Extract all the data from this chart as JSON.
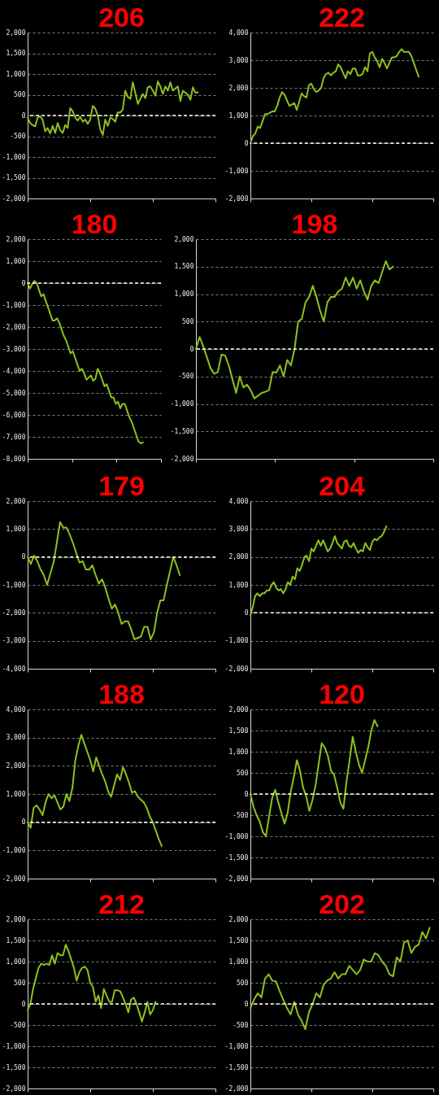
{
  "chart_data": [
    {
      "type": "line",
      "title": "206",
      "color": "#8cc21e",
      "grid": "y",
      "tick_labels": "y",
      "ylim": [
        -2000,
        2000
      ],
      "yticks": [
        {
          "value": -2000,
          "label": "-2,000"
        },
        {
          "value": -1500,
          "label": "-1,500"
        },
        {
          "value": -1000,
          "label": "-1,000"
        },
        -500,
        0,
        500,
        {
          "value": 1000,
          "label": "1,000"
        },
        {
          "value": 1500,
          "label": "1,500"
        },
        {
          "value": 2000,
          "label": "2,000"
        }
      ],
      "ref_lines": [
        {
          "axis": "y",
          "value": 0,
          "color": "#ffffff",
          "line_style": "dashed"
        }
      ],
      "categories": [
        null,
        null,
        null,
        null,
        null,
        null,
        null,
        null,
        null,
        null,
        null,
        null,
        null,
        null,
        null,
        null,
        null,
        null,
        null,
        null,
        null,
        null,
        null,
        null,
        null,
        null,
        null,
        null,
        null,
        null,
        null,
        null,
        null,
        null,
        null,
        null,
        null,
        null,
        null,
        null,
        null,
        null,
        null,
        null,
        null,
        null,
        null,
        null,
        null,
        null,
        null,
        null,
        null,
        null,
        null,
        null,
        null,
        null,
        null,
        null,
        null,
        null,
        null,
        null,
        null,
        null,
        null,
        null,
        null,
        null,
        null,
        null,
        null,
        null,
        null,
        null
      ],
      "values": [
        -50,
        -180,
        -230,
        -260,
        -50,
        -20,
        -100,
        -380,
        -300,
        -430,
        -250,
        -420,
        -180,
        -350,
        -420,
        -230,
        -300,
        180,
        100,
        -50,
        -120,
        -30,
        -150,
        -100,
        -200,
        -100,
        230,
        170,
        0,
        -330,
        -470,
        -100,
        -250,
        -50,
        -80,
        -150,
        80,
        70,
        150,
        600,
        450,
        400,
        800,
        550,
        280,
        400,
        520,
        420,
        680,
        700,
        600,
        480,
        820,
        700,
        520,
        700,
        600,
        800,
        600,
        650,
        700,
        350,
        600,
        550,
        500,
        380,
        680,
        550,
        560,
        null,
        null,
        null,
        null,
        null,
        null,
        null
      ]
    },
    {
      "type": "line",
      "title": "222",
      "color": "#8cc21e",
      "grid": "y",
      "tick_labels": "y",
      "ylim": [
        -2000,
        4000
      ],
      "yticks": [
        {
          "value": -2000,
          "label": "-2,000"
        },
        {
          "value": -1000,
          "label": "-1,000"
        },
        0,
        {
          "value": 1000,
          "label": "1,000"
        },
        {
          "value": 2000,
          "label": "2,000"
        },
        {
          "value": 3000,
          "label": "3,000"
        },
        {
          "value": 4000,
          "label": "4,000"
        }
      ],
      "ref_lines": [
        {
          "axis": "y",
          "value": 0,
          "color": "#ffffff",
          "line_style": "dashed"
        }
      ],
      "categories": [
        null,
        null,
        null,
        null,
        null,
        null,
        null,
        null,
        null,
        null,
        null,
        null,
        null,
        null,
        null,
        null,
        null,
        null,
        null,
        null,
        null,
        null,
        null,
        null,
        null,
        null,
        null,
        null,
        null,
        null,
        null,
        null,
        null,
        null,
        null,
        null,
        null,
        null,
        null,
        null,
        null,
        null,
        null,
        null,
        null,
        null,
        null,
        null,
        null,
        null,
        null,
        null,
        null,
        null,
        null,
        null,
        null,
        null,
        null,
        null,
        null,
        null,
        null,
        null,
        null,
        null,
        null,
        null,
        null,
        null,
        null,
        null,
        null,
        null,
        null,
        null
      ],
      "values": [
        0,
        250,
        350,
        600,
        550,
        800,
        1050,
        1050,
        1100,
        1150,
        1150,
        1350,
        1650,
        1850,
        1750,
        1550,
        1350,
        1400,
        1450,
        1200,
        1500,
        1800,
        1700,
        1650,
        2100,
        2150,
        1950,
        1850,
        1900,
        2000,
        2350,
        2500,
        2550,
        2450,
        2550,
        2600,
        2850,
        2750,
        2550,
        2350,
        2600,
        2500,
        2700,
        2700,
        2450,
        2450,
        2500,
        2750,
        2600,
        3250,
        3300,
        3100,
        2950,
        2750,
        3050,
        2900,
        2700,
        2900,
        3100,
        3100,
        3150,
        3300,
        3400,
        3300,
        3300,
        3300,
        3150,
        2900,
        2650,
        2400,
        null,
        null,
        null,
        null,
        null,
        null
      ]
    },
    {
      "type": "line",
      "title": "180",
      "color": "#8cc21e",
      "grid": "y",
      "tick_labels": "y",
      "ylim": [
        -8000,
        2000
      ],
      "yticks": [
        {
          "value": -8000,
          "label": "-8,000"
        },
        {
          "value": -7000,
          "label": "-7,000"
        },
        {
          "value": -6000,
          "label": "-6,000"
        },
        {
          "value": -5000,
          "label": "-5,000"
        },
        {
          "value": -4000,
          "label": "-4,000"
        },
        {
          "value": -3000,
          "label": "-3,000"
        },
        {
          "value": -2000,
          "label": "-2,000"
        },
        {
          "value": -1000,
          "label": "-1,000"
        },
        0,
        {
          "value": 1000,
          "label": "1,000"
        },
        {
          "value": 2000,
          "label": "2,000"
        }
      ],
      "ref_lines": [
        {
          "axis": "y",
          "value": 0,
          "color": "#ffffff",
          "line_style": "dashed"
        }
      ],
      "categories": [
        null,
        null,
        null,
        null,
        null,
        null,
        null,
        null,
        null,
        null,
        null,
        null,
        null,
        null,
        null,
        null,
        null,
        null,
        null,
        null,
        null,
        null,
        null,
        null,
        null,
        null,
        null,
        null,
        null,
        null,
        null,
        null,
        null,
        null,
        null,
        null,
        null,
        null,
        null,
        null,
        null,
        null,
        null,
        null,
        null,
        null,
        null,
        null,
        null,
        null,
        null,
        null,
        null,
        null,
        null,
        null,
        null,
        null,
        null,
        null
      ],
      "values": [
        0,
        -250,
        -50,
        100,
        0,
        -300,
        -600,
        -500,
        -800,
        -1100,
        -1400,
        -1700,
        -1700,
        -1600,
        -1800,
        -2100,
        -2400,
        -2600,
        -2900,
        -3200,
        -3100,
        -3400,
        -3700,
        -4000,
        -3900,
        -4100,
        -4400,
        -4300,
        -4200,
        -4450,
        -4350,
        -3900,
        -4100,
        -4400,
        -4700,
        -4600,
        -4900,
        -5200,
        -5200,
        -5500,
        -5400,
        -5700,
        -5500,
        -5500,
        -5800,
        -6100,
        -6300,
        -6600,
        -6900,
        -7200,
        -7300,
        -7250,
        null,
        null,
        null,
        null,
        null,
        null,
        null,
        null
      ]
    },
    {
      "type": "line",
      "title": "198",
      "color": "#8cc21e",
      "grid": "y",
      "tick_labels": "y",
      "ylim": [
        -2000,
        2000
      ],
      "yticks": [
        {
          "value": -2000,
          "label": "-2,000"
        },
        {
          "value": -1500,
          "label": "-1,500"
        },
        {
          "value": -1000,
          "label": "-1,000"
        },
        -500,
        0,
        500,
        {
          "value": 1000,
          "label": "1,000"
        },
        {
          "value": 1500,
          "label": "1,500"
        },
        {
          "value": 2000,
          "label": "2,000"
        }
      ],
      "ref_lines": [
        {
          "axis": "y",
          "value": 0,
          "color": "#ffffff",
          "line_style": "dashed"
        }
      ],
      "categories": [
        null,
        null,
        null,
        null,
        null,
        null,
        null,
        null,
        null,
        null,
        null,
        null,
        null,
        null,
        null,
        null,
        null,
        null,
        null,
        null,
        null,
        null,
        null,
        null,
        null,
        null,
        null,
        null,
        null,
        null,
        null,
        null,
        null,
        null,
        null,
        null,
        null,
        null,
        null,
        null,
        null,
        null,
        null,
        null,
        null,
        null,
        null,
        null,
        null,
        null,
        null,
        null,
        null,
        null,
        null,
        null,
        null,
        null,
        null,
        null,
        null,
        null,
        null,
        null,
        null,
        null
      ],
      "values": [
        0,
        220,
        50,
        -150,
        -350,
        -450,
        -420,
        -100,
        -120,
        -300,
        -550,
        -800,
        -500,
        -700,
        -650,
        -750,
        -900,
        -850,
        -800,
        -780,
        -750,
        -420,
        -430,
        -300,
        -500,
        -200,
        -300,
        0,
        500,
        550,
        850,
        950,
        1150,
        950,
        700,
        500,
        850,
        950,
        950,
        1050,
        1100,
        1300,
        1150,
        1300,
        1100,
        1250,
        1050,
        900,
        1150,
        1250,
        1200,
        1400,
        1600,
        1450,
        1500,
        null,
        null,
        null,
        null,
        null,
        null,
        null,
        null,
        null,
        null,
        null
      ]
    },
    {
      "type": "line",
      "title": "179",
      "color": "#8cc21e",
      "grid": "y",
      "tick_labels": "y",
      "ylim": [
        -4000,
        2000
      ],
      "yticks": [
        {
          "value": -4000,
          "label": "-4,000"
        },
        {
          "value": -3000,
          "label": "-3,000"
        },
        {
          "value": -2000,
          "label": "-2,000"
        },
        {
          "value": -1000,
          "label": "-1,000"
        },
        0,
        {
          "value": 1000,
          "label": "1,000"
        },
        {
          "value": 2000,
          "label": "2,000"
        }
      ],
      "ref_lines": [
        {
          "axis": "y",
          "value": 0,
          "color": "#ffffff",
          "line_style": "dashed"
        }
      ],
      "categories": [
        null,
        null,
        null,
        null,
        null,
        null,
        null,
        null,
        null,
        null,
        null,
        null,
        null,
        null,
        null,
        null,
        null,
        null,
        null,
        null,
        null,
        null,
        null,
        null,
        null,
        null,
        null,
        null,
        null,
        null,
        null,
        null,
        null,
        null,
        null,
        null,
        null,
        null,
        null,
        null,
        null,
        null,
        null,
        null,
        null,
        null,
        null,
        null,
        null,
        null,
        null,
        null,
        null,
        null,
        null,
        null,
        null,
        null,
        null
      ],
      "values": [
        0,
        -250,
        50,
        -150,
        -450,
        -650,
        -1000,
        -600,
        -200,
        500,
        1250,
        1050,
        1050,
        800,
        500,
        150,
        -200,
        -150,
        -450,
        -450,
        -300,
        -650,
        -950,
        -800,
        -1100,
        -1500,
        -1850,
        -1700,
        -2000,
        -2400,
        -2300,
        -2300,
        -2600,
        -2950,
        -2900,
        -2850,
        -2500,
        -2500,
        -2950,
        -2700,
        -2000,
        -1550,
        -1550,
        -1000,
        -500,
        0,
        -300,
        -650,
        null,
        null,
        null,
        null,
        null,
        null,
        null,
        null,
        null,
        null,
        null
      ]
    },
    {
      "type": "line",
      "title": "204",
      "color": "#8cc21e",
      "grid": "y",
      "tick_labels": "y",
      "ylim": [
        -2000,
        4000
      ],
      "yticks": [
        {
          "value": -2000,
          "label": "-2,000"
        },
        {
          "value": -1000,
          "label": "-1,000"
        },
        0,
        {
          "value": 1000,
          "label": "1,000"
        },
        {
          "value": 2000,
          "label": "2,000"
        },
        {
          "value": 3000,
          "label": "3,000"
        },
        {
          "value": 4000,
          "label": "4,000"
        }
      ],
      "ref_lines": [
        {
          "axis": "y",
          "value": 0,
          "color": "#ffffff",
          "line_style": "dashed"
        }
      ],
      "categories": [
        null,
        null,
        null,
        null,
        null,
        null,
        null,
        null,
        null,
        null,
        null,
        null,
        null,
        null,
        null,
        null,
        null,
        null,
        null,
        null,
        null,
        null,
        null,
        null,
        null,
        null,
        null,
        null,
        null,
        null,
        null,
        null,
        null,
        null,
        null,
        null,
        null,
        null,
        null,
        null,
        null,
        null,
        null,
        null,
        null,
        null,
        null,
        null,
        null,
        null,
        null,
        null,
        null,
        null,
        null,
        null,
        null,
        null,
        null,
        null,
        null,
        null,
        null,
        null,
        null,
        null,
        null,
        null,
        null,
        null,
        null,
        null,
        null,
        null,
        null,
        null,
        null,
        null,
        null
      ],
      "values": [
        -100,
        200,
        600,
        700,
        600,
        700,
        700,
        800,
        800,
        1000,
        1100,
        900,
        800,
        850,
        700,
        850,
        1100,
        1000,
        1300,
        1200,
        1600,
        1500,
        1700,
        2000,
        2050,
        1850,
        2300,
        2200,
        2400,
        2600,
        2400,
        2600,
        2400,
        2200,
        2300,
        2500,
        2750,
        2500,
        2400,
        2300,
        2550,
        2600,
        2400,
        2350,
        2500,
        2300,
        2150,
        2250,
        2200,
        2500,
        2350,
        2250,
        2550,
        2650,
        2600,
        2700,
        2750,
        2900,
        3100,
        null,
        null,
        null,
        null,
        null,
        null,
        null,
        null,
        null,
        null,
        null,
        null,
        null,
        null,
        null,
        null,
        null,
        null,
        null,
        null
      ]
    },
    {
      "type": "line",
      "title": "188",
      "color": "#8cc21e",
      "grid": "y",
      "tick_labels": "y",
      "ylim": [
        -2000,
        4000
      ],
      "yticks": [
        {
          "value": -2000,
          "label": "-2,000"
        },
        {
          "value": -1000,
          "label": "-1,000"
        },
        0,
        {
          "value": 1000,
          "label": "1,000"
        },
        {
          "value": 2000,
          "label": "2,000"
        },
        {
          "value": 3000,
          "label": "3,000"
        },
        {
          "value": 4000,
          "label": "4,000"
        }
      ],
      "ref_lines": [
        {
          "axis": "y",
          "value": 0,
          "color": "#ffffff",
          "line_style": "dashed"
        }
      ],
      "categories": [
        null,
        null,
        null,
        null,
        null,
        null,
        null,
        null,
        null,
        null,
        null,
        null,
        null,
        null,
        null,
        null,
        null,
        null,
        null,
        null,
        null,
        null,
        null,
        null,
        null,
        null,
        null,
        null,
        null,
        null,
        null,
        null,
        null,
        null,
        null,
        null,
        null,
        null,
        null,
        null,
        null,
        null,
        null,
        null,
        null,
        null,
        null,
        null,
        null,
        null,
        null,
        null,
        null,
        null,
        null,
        null,
        null,
        null,
        null,
        null,
        null,
        null,
        null,
        null
      ],
      "values": [
        0,
        -200,
        500,
        600,
        450,
        250,
        700,
        1000,
        850,
        950,
        700,
        450,
        550,
        1000,
        750,
        1200,
        2200,
        2700,
        3100,
        2800,
        2500,
        2200,
        1800,
        2300,
        2000,
        1700,
        1450,
        1100,
        900,
        1300,
        1700,
        1500,
        1950,
        1700,
        1400,
        1050,
        1100,
        900,
        800,
        700,
        500,
        200,
        0,
        -300,
        -600,
        -850,
        null,
        null,
        null,
        null,
        null,
        null,
        null,
        null,
        null,
        null,
        null,
        null,
        null,
        null,
        null,
        null,
        null,
        null
      ]
    },
    {
      "type": "line",
      "title": "120",
      "color": "#8cc21e",
      "grid": "y",
      "tick_labels": "y",
      "ylim": [
        -2000,
        2000
      ],
      "yticks": [
        {
          "value": -2000,
          "label": "-2,000"
        },
        {
          "value": -1500,
          "label": "-1,500"
        },
        {
          "value": -1000,
          "label": "-1,000"
        },
        -500,
        0,
        500,
        {
          "value": 1000,
          "label": "1,000"
        },
        {
          "value": 1500,
          "label": "1,500"
        },
        {
          "value": 2000,
          "label": "2,000"
        }
      ],
      "ref_lines": [
        {
          "axis": "y",
          "value": 0,
          "color": "#ffffff",
          "line_style": "dashed"
        }
      ],
      "categories": [
        null,
        null,
        null,
        null,
        null,
        null,
        null,
        null,
        null,
        null,
        null,
        null,
        null,
        null,
        null,
        null,
        null,
        null,
        null,
        null,
        null,
        null,
        null,
        null,
        null,
        null,
        null,
        null,
        null,
        null,
        null,
        null,
        null,
        null,
        null,
        null,
        null,
        null,
        null,
        null,
        null,
        null,
        null,
        null,
        null,
        null,
        null,
        null,
        null,
        null,
        null,
        null,
        null,
        null,
        null,
        null,
        null,
        null,
        null,
        null
      ],
      "values": [
        0,
        -300,
        -500,
        -650,
        -900,
        -1000,
        -550,
        -100,
        100,
        -200,
        -450,
        -700,
        -450,
        50,
        400,
        800,
        550,
        150,
        -50,
        -400,
        -150,
        200,
        700,
        1200,
        1100,
        900,
        550,
        450,
        150,
        -200,
        -350,
        300,
        800,
        1350,
        1000,
        700,
        500,
        800,
        1100,
        1500,
        1750,
        1600,
        null,
        null,
        null,
        null,
        null,
        null,
        null,
        null,
        null,
        null,
        null,
        null,
        null,
        null,
        null,
        null,
        null,
        null
      ]
    },
    {
      "type": "line",
      "title": "212",
      "color": "#8cc21e",
      "grid": "y",
      "tick_labels": "y",
      "ylim": [
        -2000,
        2000
      ],
      "yticks": [
        {
          "value": -2000,
          "label": "-2,000"
        },
        {
          "value": -1500,
          "label": "-1,500"
        },
        {
          "value": -1000,
          "label": "-1,000"
        },
        -500,
        0,
        500,
        {
          "value": 1000,
          "label": "1,000"
        },
        {
          "value": 1500,
          "label": "1,500"
        },
        {
          "value": 2000,
          "label": "2,000"
        }
      ],
      "ref_lines": [
        {
          "axis": "y",
          "value": 0,
          "color": "#ffffff",
          "line_style": "dashed"
        }
      ],
      "categories": [
        null,
        null,
        null,
        null,
        null,
        null,
        null,
        null,
        null,
        null,
        null,
        null,
        null,
        null,
        null,
        null,
        null,
        null,
        null,
        null,
        null,
        null,
        null,
        null,
        null,
        null,
        null,
        null,
        null,
        null,
        null,
        null,
        null,
        null,
        null,
        null,
        null,
        null,
        null,
        null,
        null,
        null,
        null,
        null,
        null,
        null,
        null,
        null,
        null,
        null,
        null,
        null,
        null,
        null,
        null,
        null,
        null,
        null,
        null,
        null,
        null,
        null,
        null,
        null,
        null,
        null,
        null,
        null,
        null,
        null
      ],
      "values": [
        -150,
        0,
        350,
        600,
        850,
        950,
        920,
        950,
        920,
        1150,
        950,
        1200,
        1150,
        1150,
        1400,
        1250,
        1050,
        850,
        550,
        750,
        850,
        880,
        800,
        500,
        400,
        50,
        200,
        -100,
        350,
        200,
        50,
        50,
        320,
        320,
        300,
        150,
        0,
        -200,
        100,
        150,
        0,
        -200,
        -420,
        -200,
        50,
        -250,
        -150,
        50,
        null,
        null,
        null,
        null,
        null,
        null,
        null,
        null,
        null,
        null,
        null,
        null,
        null,
        null,
        null,
        null,
        null,
        null,
        null,
        null,
        null,
        null
      ]
    },
    {
      "type": "line",
      "title": "202",
      "color": "#8cc21e",
      "grid": "y",
      "tick_labels": "y",
      "ylim": [
        -2000,
        2000
      ],
      "yticks": [
        {
          "value": -2000,
          "label": "-2,000"
        },
        {
          "value": -1500,
          "label": "-1,500"
        },
        {
          "value": -1000,
          "label": "-1,000"
        },
        -500,
        0,
        500,
        {
          "value": 1000,
          "label": "1,000"
        },
        {
          "value": 1500,
          "label": "1,500"
        },
        {
          "value": 2000,
          "label": "2,000"
        }
      ],
      "ref_lines": [
        {
          "axis": "y",
          "value": 0,
          "color": "#ffffff",
          "line_style": "dashed"
        }
      ],
      "categories": [
        null,
        null,
        null,
        null,
        null,
        null,
        null,
        null,
        null,
        null,
        null,
        null,
        null,
        null,
        null,
        null,
        null,
        null,
        null,
        null,
        null,
        null,
        null,
        null,
        null,
        null,
        null,
        null,
        null,
        null,
        null,
        null,
        null,
        null,
        null,
        null,
        null,
        null,
        null,
        null,
        null,
        null,
        null,
        null,
        null,
        null,
        null,
        null,
        null,
        null,
        null
      ],
      "values": [
        -100,
        100,
        250,
        150,
        600,
        700,
        550,
        530,
        300,
        100,
        -100,
        -250,
        50,
        -250,
        -400,
        -600,
        -200,
        0,
        250,
        150,
        450,
        550,
        600,
        750,
        600,
        700,
        700,
        900,
        800,
        700,
        800,
        1050,
        1000,
        1000,
        1200,
        1150,
        1000,
        900,
        700,
        650,
        1100,
        1000,
        1450,
        1500,
        1200,
        1350,
        1400,
        1700,
        1550,
        1800,
        null
      ]
    }
  ]
}
